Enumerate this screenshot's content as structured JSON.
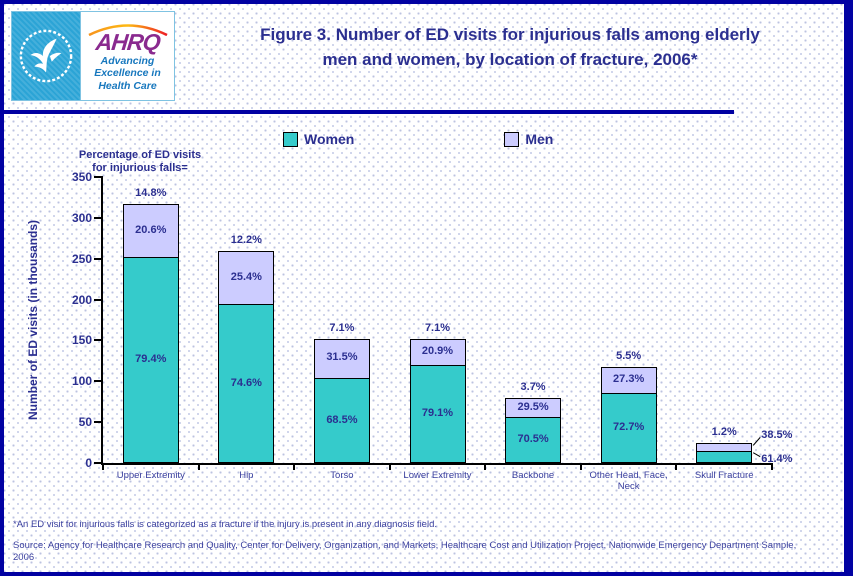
{
  "header": {
    "title_line1": "Figure 3. Number of ED visits for injurious falls among elderly",
    "title_line2": "men and women, by location of fracture, 2006*",
    "logo": {
      "acronym": "AHRQ",
      "tagline_line1": "Advancing",
      "tagline_line2": "Excellence in",
      "tagline_line3": "Health Care"
    }
  },
  "legend": {
    "women_label": "Women",
    "men_label": "Men"
  },
  "annotation": {
    "line1": "Percentage of ED visits",
    "line2": "for injurious falls="
  },
  "chart_data": {
    "type": "bar",
    "stacked": true,
    "title": "Figure 3. Number of ED visits for injurious falls among elderly men and women, by location of fracture, 2006*",
    "xlabel": "",
    "ylabel": "Number of ED visits (in thousands)",
    "ylim": [
      0,
      350
    ],
    "yticks": [
      0,
      50,
      100,
      150,
      200,
      250,
      300,
      350
    ],
    "grid": false,
    "legend_position": "top",
    "categories": [
      "Upper Extremity",
      "Hip",
      "Torso",
      "Lower Extremity",
      "Backbone",
      "Other Head, Face, Neck",
      "Skull Fracture"
    ],
    "series": [
      {
        "name": "Women",
        "color": "#35cbcb",
        "values": [
          252,
          194,
          104,
          120,
          56,
          86,
          15
        ],
        "percent_labels": [
          "79.4%",
          "74.6%",
          "68.5%",
          "79.1%",
          "70.5%",
          "72.7%",
          "61.4%"
        ]
      },
      {
        "name": "Men",
        "color": "#ccccff",
        "values": [
          65,
          66,
          48,
          32,
          23,
          32,
          9
        ],
        "percent_labels": [
          "20.6%",
          "25.4%",
          "31.5%",
          "20.9%",
          "29.5%",
          "27.3%",
          "38.5%"
        ]
      }
    ],
    "total_percent_labels": [
      "14.8%",
      "12.2%",
      "7.1%",
      "7.1%",
      "3.7%",
      "5.5%",
      "1.2%"
    ]
  },
  "footnotes": {
    "asterisk_note": "*An ED visit for injurious falls is categorized as a fracture if the injury is present in any diagnosis field.",
    "source": "Source: Agency for Healthcare Research and Quality, Center for Delivery, Organization, and Markets, Healthcare Cost and Utilization Project, Nationwide Emergency Department Sample, 2006"
  },
  "colors": {
    "women": "#35cbcb",
    "men": "#ccccff",
    "navy_text": "#2b2f90",
    "border_navy": "#0101a2"
  }
}
